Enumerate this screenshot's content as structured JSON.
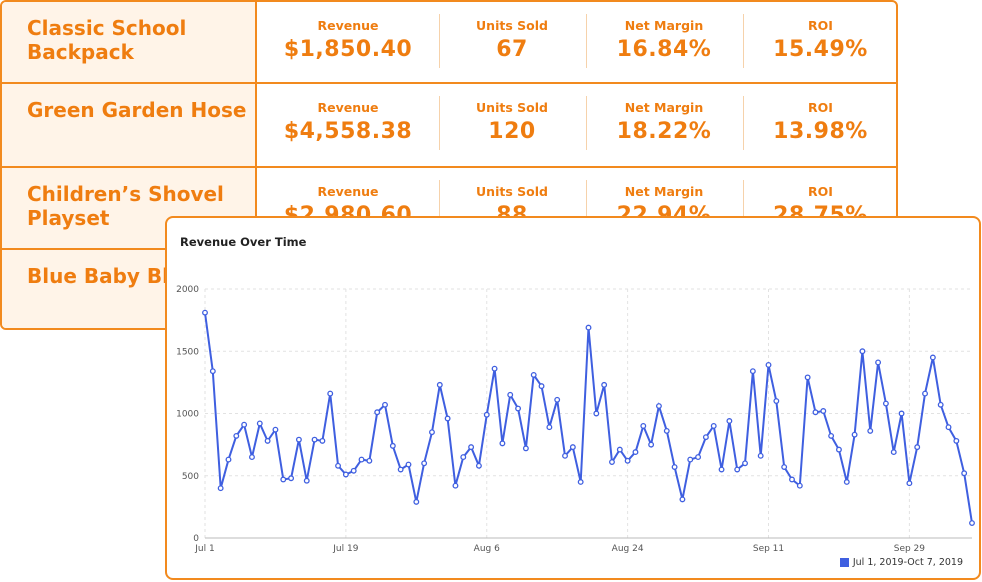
{
  "products": [
    {
      "name": "Classic School Backpack",
      "revenue": "$1,850.40",
      "units": "67",
      "margin": "16.84%",
      "roi": "15.49%"
    },
    {
      "name": "Green Garden Hose",
      "revenue": "$4,558.38",
      "units": "120",
      "margin": "18.22%",
      "roi": "13.98%"
    },
    {
      "name": "Children’s Shovel Playset",
      "revenue": "$2,980.60",
      "units": "88",
      "margin": "22.94%",
      "roi": "28.75%"
    },
    {
      "name": "Blue Baby Blanket",
      "revenue": "",
      "units": "",
      "margin": "",
      "roi": ""
    }
  ],
  "metric_labels": {
    "revenue": "Revenue",
    "units": "Units Sold",
    "margin": "Net Margin",
    "roi": "ROI"
  },
  "colors": {
    "accent": "#ef7d10",
    "line": "#3f5fe0"
  },
  "chart_data": {
    "type": "line",
    "title": "Revenue Over Time",
    "xlabel": "",
    "ylabel": "",
    "ylim": [
      0,
      2000
    ],
    "yticks": [
      "0",
      "500",
      "1000",
      "1500",
      "2000"
    ],
    "xticks": [
      "Jul 1",
      "Jul 19",
      "Aug 6",
      "Aug 24",
      "Sep 11",
      "Sep 29"
    ],
    "legend": "Jul 1, 2019-Oct 7, 2019",
    "legend_position": "bottom-right",
    "grid": true,
    "series": [
      {
        "name": "Jul 1, 2019-Oct 7, 2019",
        "values": [
          1810,
          1340,
          400,
          630,
          820,
          910,
          650,
          920,
          780,
          870,
          470,
          480,
          790,
          460,
          790,
          780,
          1160,
          580,
          510,
          540,
          630,
          620,
          1010,
          1070,
          740,
          550,
          590,
          290,
          600,
          850,
          1230,
          960,
          420,
          650,
          730,
          580,
          990,
          1360,
          760,
          1150,
          1040,
          720,
          1310,
          1220,
          890,
          1110,
          660,
          730,
          450,
          1690,
          1000,
          1230,
          610,
          710,
          620,
          690,
          900,
          750,
          1060,
          860,
          570,
          310,
          630,
          650,
          810,
          900,
          550,
          940,
          550,
          600,
          1340,
          660,
          1390,
          1100,
          570,
          470,
          420,
          1290,
          1010,
          1020,
          820,
          710,
          450,
          830,
          1500,
          860,
          1410,
          1080,
          690,
          1000,
          440,
          730,
          1160,
          1450,
          1070,
          890,
          780,
          520,
          120
        ]
      }
    ]
  }
}
